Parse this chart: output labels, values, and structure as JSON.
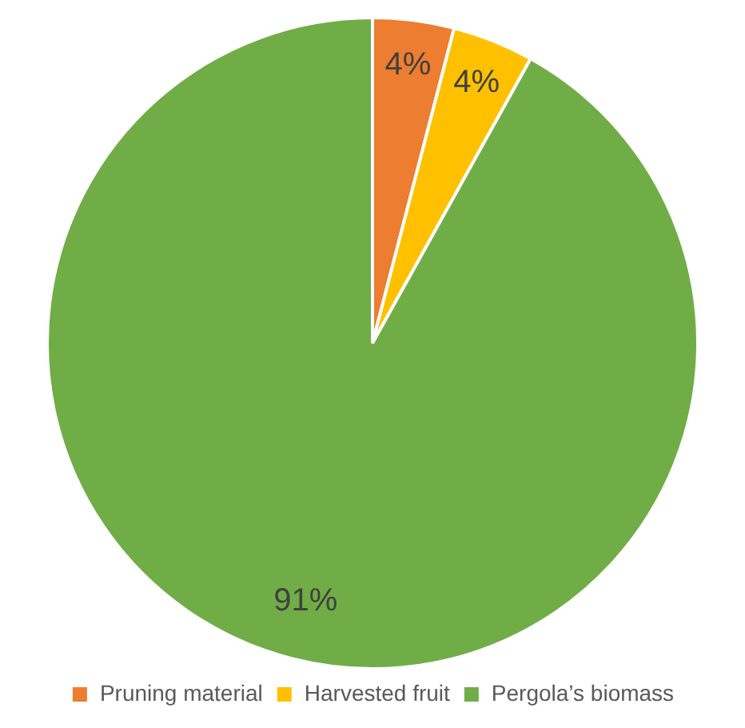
{
  "chart_data": {
    "type": "pie",
    "categories": [
      "Pruning material",
      "Harvested fruit",
      "Pergola’s biomass"
    ],
    "values": [
      4,
      4,
      91
    ],
    "colors": [
      "#ed7d31",
      "#ffc000",
      "#70ad47"
    ],
    "value_labels": [
      "4%",
      "4%",
      "91%"
    ],
    "legend": "bottom"
  }
}
